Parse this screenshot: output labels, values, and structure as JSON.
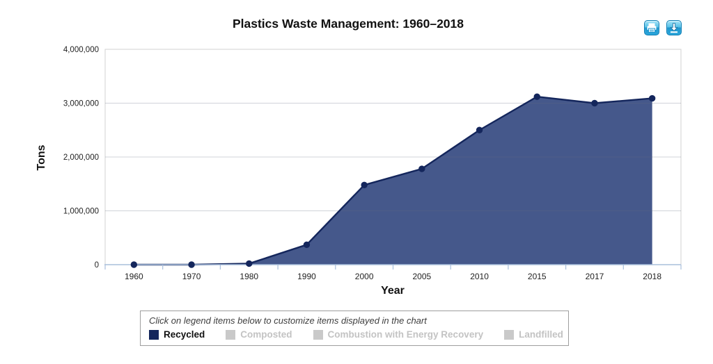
{
  "header": {
    "title": "Plastics Waste Management: 1960–2018",
    "toolbar": {
      "print_icon": "printer-icon",
      "download_icon": "download-arrow-icon"
    }
  },
  "chart_data": {
    "type": "area",
    "title": "Plastics Waste Management: 1960–2018",
    "xlabel": "Year",
    "ylabel": "Tons",
    "categories": [
      "1960",
      "1970",
      "1980",
      "1990",
      "2000",
      "2005",
      "2010",
      "2015",
      "2017",
      "2018"
    ],
    "series": [
      {
        "name": "Recycled",
        "values": [
          0,
          0,
          20000,
          370000,
          1480000,
          1780000,
          2500000,
          3120000,
          3000000,
          3090000
        ]
      }
    ],
    "ylim": [
      0,
      4000000
    ],
    "ytick_values": [
      0,
      1000000,
      2000000,
      3000000,
      4000000
    ],
    "ytick_labels": [
      "0",
      "1,000,000",
      "2,000,000",
      "3,000,000",
      "4,000,000"
    ],
    "grid": true,
    "legend_position": "bottom",
    "colors": {
      "area_fill": "#45588b",
      "line": "#14265c",
      "marker": "#14265c",
      "axis_line": "#a9bfdc",
      "plot_border": "#d2d2d2",
      "gridline": "rgba(100,110,130,0.30)",
      "tick_label": "#222222"
    }
  },
  "legend": {
    "instruction": "Click on legend items below to customize items displayed in the chart",
    "items": [
      {
        "label": "Recycled",
        "active": true,
        "color": "#14265c"
      },
      {
        "label": "Composted",
        "active": false,
        "color": "#c9c9c9"
      },
      {
        "label": "Combustion with Energy Recovery",
        "active": false,
        "color": "#c9c9c9"
      },
      {
        "label": "Landfilled",
        "active": false,
        "color": "#c9c9c9"
      }
    ]
  }
}
